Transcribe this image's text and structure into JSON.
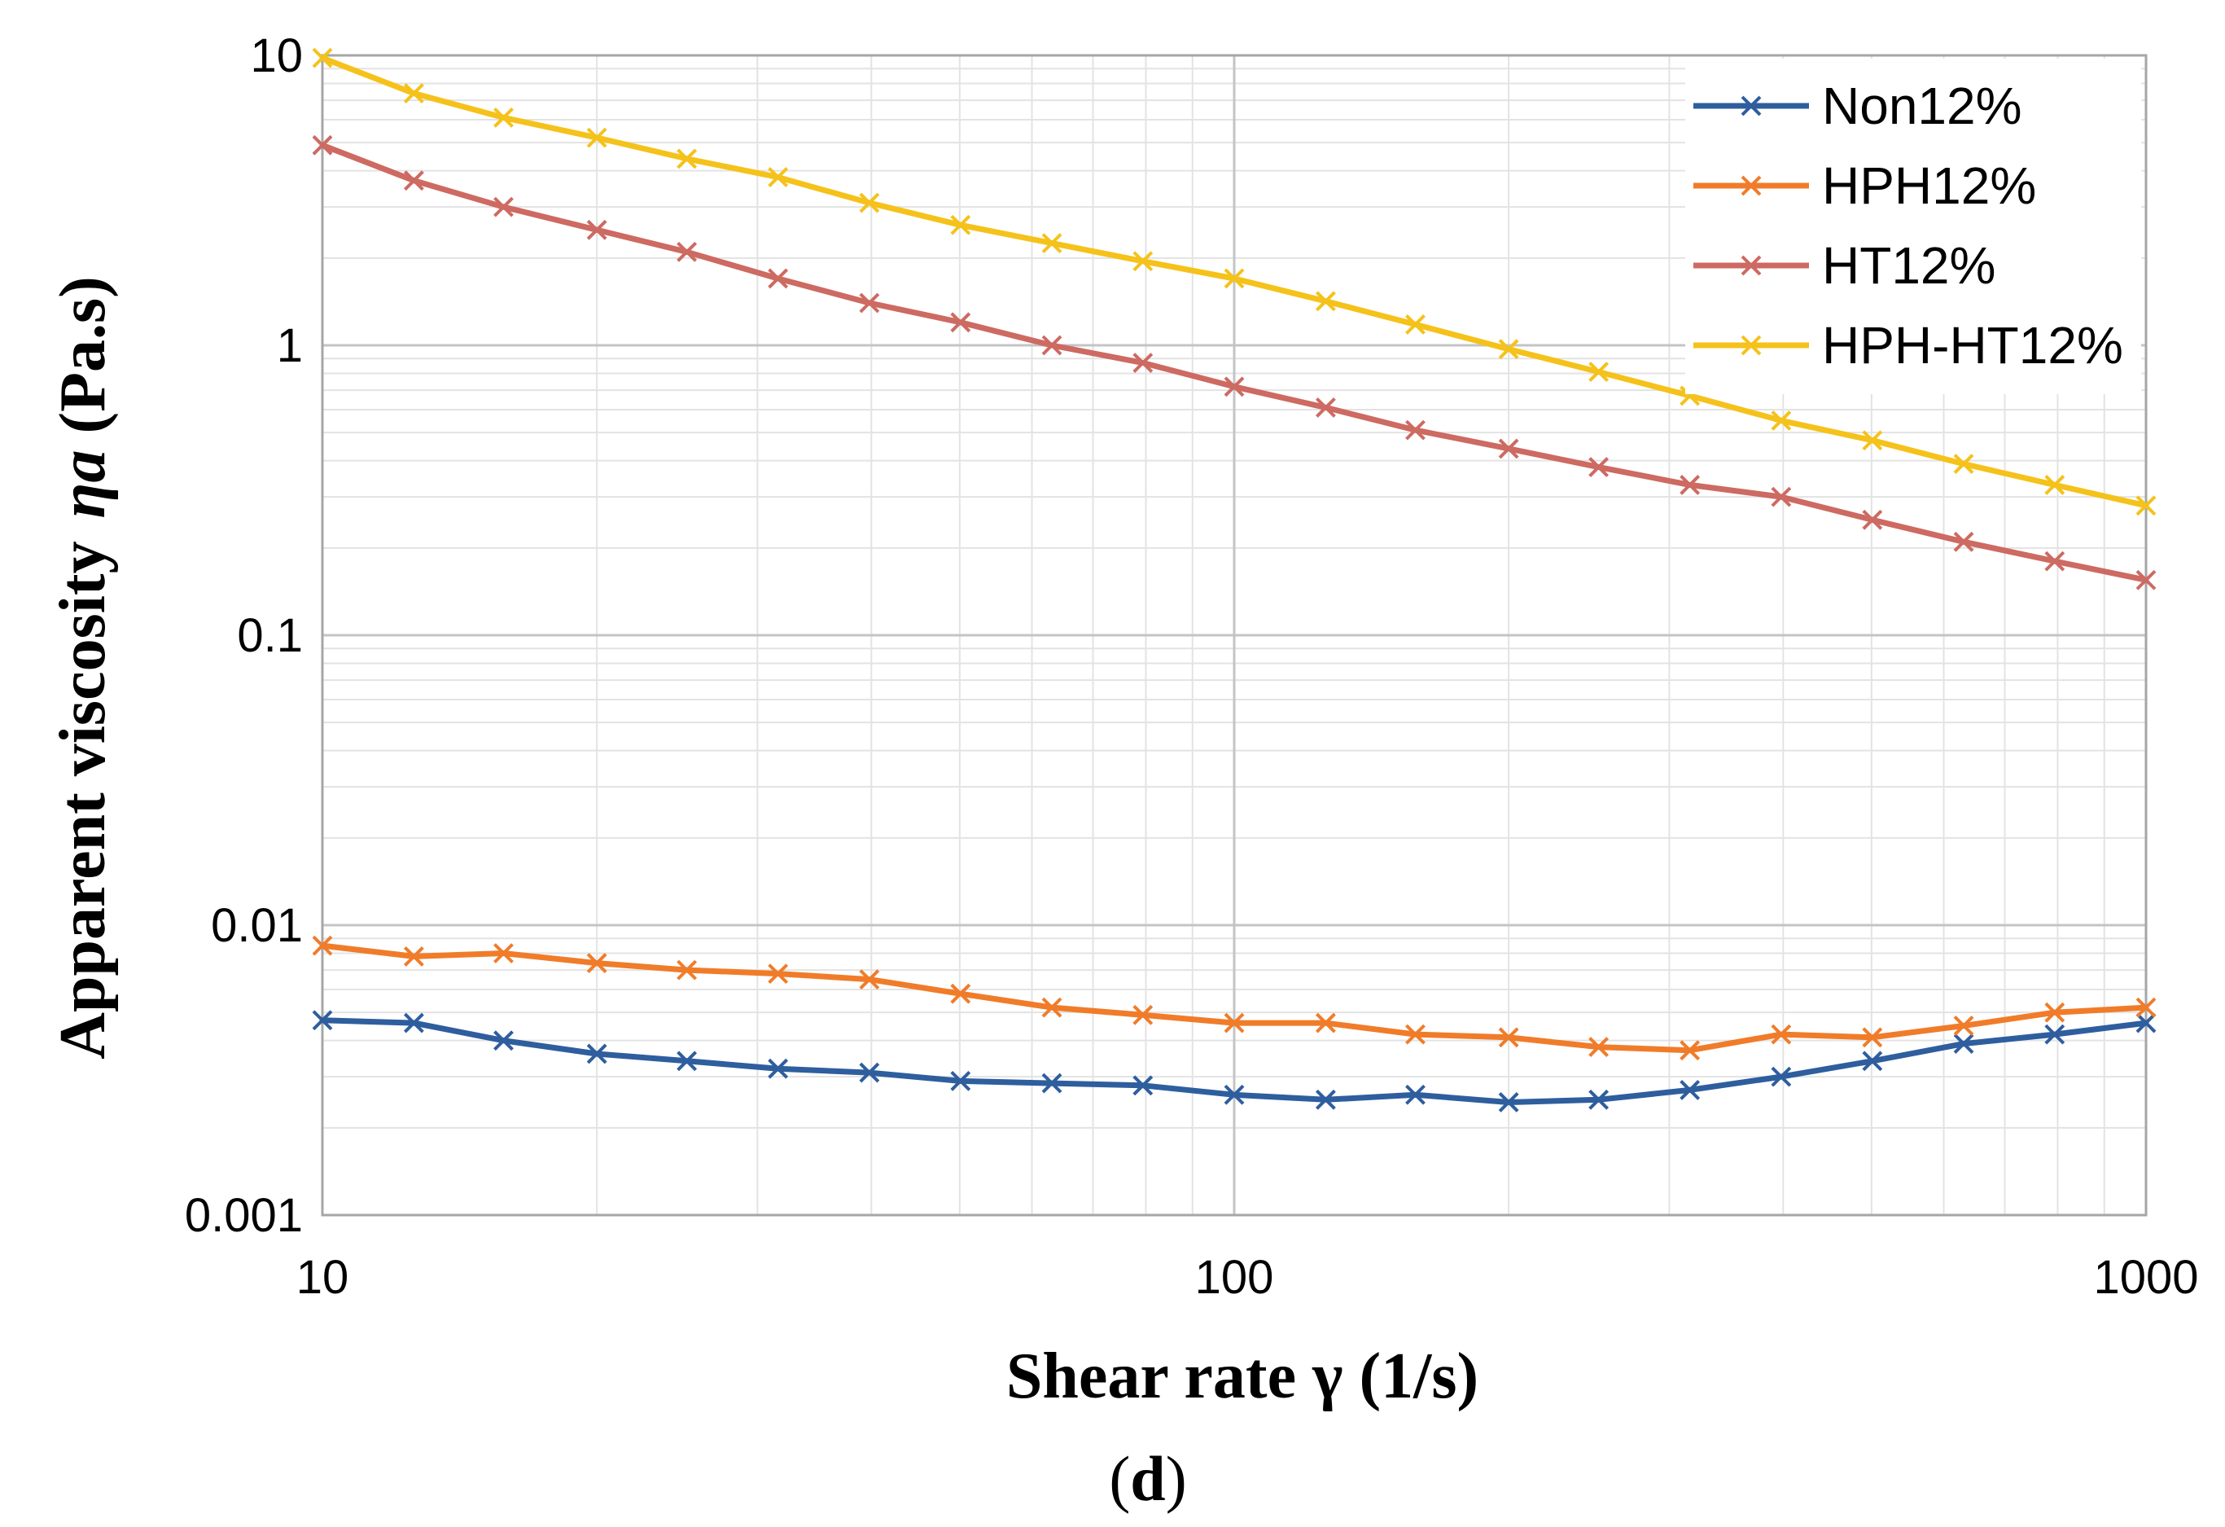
{
  "caption": {
    "open": "(",
    "letter": "d",
    "close": ")"
  },
  "chart_data": {
    "type": "line",
    "title": "",
    "xlabel": "Shear rate γ (1/s)",
    "ylabel": "Apparent viscosity",
    "ylabel_symbol": "ηa",
    "ylabel_unit": "(Pa.s)",
    "xscale": "log",
    "yscale": "log",
    "xlim": [
      10,
      1000
    ],
    "ylim": [
      0.001,
      10
    ],
    "x_ticks": [
      {
        "value": 10,
        "label": "10"
      },
      {
        "value": 100,
        "label": "100"
      },
      {
        "value": 1000,
        "label": "1000"
      }
    ],
    "y_ticks": [
      {
        "value": 10,
        "label": "10"
      },
      {
        "value": 1,
        "label": "1"
      },
      {
        "value": 0.1,
        "label": "0.1"
      },
      {
        "value": 0.01,
        "label": "0.01"
      },
      {
        "value": 0.001,
        "label": "0.001"
      }
    ],
    "grid": true,
    "legend_position": "top-right",
    "marker": "x",
    "x": [
      10,
      12.6,
      15.8,
      20,
      25.1,
      31.6,
      39.8,
      50.1,
      63.1,
      79.4,
      100,
      126,
      158,
      200,
      251,
      316,
      398,
      501,
      631,
      794,
      1000
    ],
    "series": [
      {
        "name": "Non12%",
        "color": "#2e5e9e",
        "values": [
          0.0047,
          0.0046,
          0.004,
          0.0036,
          0.0034,
          0.0032,
          0.0031,
          0.0029,
          0.00285,
          0.0028,
          0.0026,
          0.0025,
          0.0026,
          0.00245,
          0.0025,
          0.0027,
          0.003,
          0.0034,
          0.0039,
          0.0042,
          0.0046
        ]
      },
      {
        "name": "HPH12%",
        "color": "#f07c2a",
        "values": [
          0.0085,
          0.0078,
          0.008,
          0.0074,
          0.007,
          0.0068,
          0.0065,
          0.0058,
          0.0052,
          0.0049,
          0.0046,
          0.0046,
          0.0042,
          0.0041,
          0.0038,
          0.0037,
          0.0042,
          0.0041,
          0.0045,
          0.005,
          0.0052
        ]
      },
      {
        "name": "HT12%",
        "color": "#cd6a62",
        "values": [
          4.9,
          3.7,
          3.0,
          2.5,
          2.1,
          1.7,
          1.4,
          1.2,
          1.0,
          0.87,
          0.72,
          0.61,
          0.51,
          0.44,
          0.38,
          0.33,
          0.3,
          0.25,
          0.21,
          0.18,
          0.155
        ]
      },
      {
        "name": "HPH-HT12%",
        "color": "#f5c21b",
        "values": [
          9.8,
          7.4,
          6.1,
          5.2,
          4.4,
          3.8,
          3.1,
          2.6,
          2.25,
          1.95,
          1.7,
          1.42,
          1.18,
          0.97,
          0.81,
          0.67,
          0.55,
          0.47,
          0.39,
          0.33,
          0.28
        ]
      }
    ]
  }
}
